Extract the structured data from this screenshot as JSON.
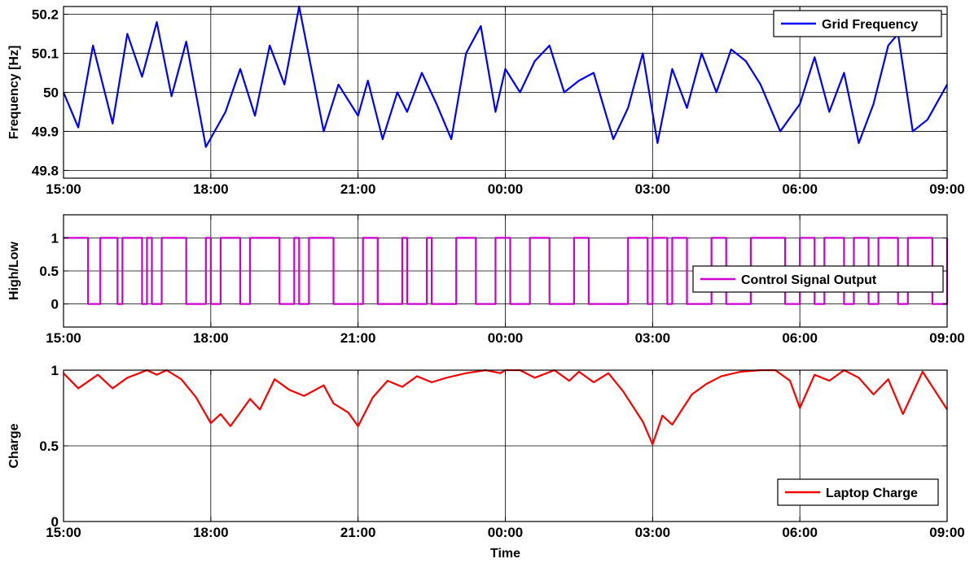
{
  "chart_data": [
    {
      "type": "line",
      "id": "frequency",
      "ylabel": "Frequency [Hz]",
      "xlabel": "",
      "xlim": [
        0,
        18
      ],
      "ylim": [
        49.78,
        50.22
      ],
      "xticks": [
        0,
        3,
        6,
        9,
        12,
        15,
        18
      ],
      "xtick_labels": [
        "15:00",
        "18:00",
        "21:00",
        "00:00",
        "03:00",
        "06:00",
        "09:00"
      ],
      "yticks": [
        49.8,
        49.9,
        50,
        50.1,
        50.2
      ],
      "ytick_labels": [
        "49.8",
        "49.9",
        "50",
        "50.1",
        "50.2"
      ],
      "grid": true,
      "legend_position": "top-right",
      "series": [
        {
          "name": "Grid Frequency",
          "color": "#0000ff",
          "step": false,
          "x": [
            0,
            0.3,
            0.6,
            1.0,
            1.3,
            1.6,
            1.9,
            2.2,
            2.5,
            2.9,
            3.3,
            3.6,
            3.9,
            4.2,
            4.5,
            4.8,
            5.3,
            5.6,
            6.0,
            6.2,
            6.5,
            6.8,
            7.0,
            7.3,
            7.6,
            7.9,
            8.2,
            8.5,
            8.8,
            9.0,
            9.3,
            9.6,
            9.9,
            10.2,
            10.5,
            10.8,
            11.2,
            11.5,
            11.8,
            12.1,
            12.4,
            12.7,
            13.0,
            13.3,
            13.6,
            13.9,
            14.2,
            14.6,
            15.0,
            15.3,
            15.6,
            15.9,
            16.2,
            16.5,
            16.8,
            17.0,
            17.3,
            17.6,
            18.0
          ],
          "y": [
            50.0,
            49.91,
            50.12,
            49.92,
            50.15,
            50.04,
            50.18,
            49.99,
            50.13,
            49.86,
            49.95,
            50.06,
            49.94,
            50.12,
            50.02,
            50.22,
            49.9,
            50.02,
            49.94,
            50.03,
            49.88,
            50.0,
            49.95,
            50.05,
            49.97,
            49.88,
            50.1,
            50.17,
            49.95,
            50.06,
            50.0,
            50.08,
            50.12,
            50.0,
            50.03,
            50.05,
            49.88,
            49.96,
            50.1,
            49.87,
            50.06,
            49.96,
            50.1,
            50.0,
            50.11,
            50.08,
            50.02,
            49.9,
            49.97,
            50.09,
            49.95,
            50.05,
            49.87,
            49.97,
            50.12,
            50.15,
            49.9,
            49.93,
            50.02
          ]
        }
      ]
    },
    {
      "type": "line",
      "id": "control",
      "ylabel": "High/Low",
      "xlabel": "",
      "xlim": [
        0,
        18
      ],
      "ylim": [
        -0.35,
        1.35
      ],
      "xticks": [
        0,
        3,
        6,
        9,
        12,
        15,
        18
      ],
      "xtick_labels": [
        "15:00",
        "18:00",
        "21:00",
        "00:00",
        "03:00",
        "06:00",
        "09:00"
      ],
      "yticks": [
        0,
        0.5,
        1
      ],
      "ytick_labels": [
        "0",
        "0.5",
        "1"
      ],
      "grid": true,
      "legend_position": "center-right",
      "series": [
        {
          "name": "Control Signal Output",
          "color": "#cc00cc",
          "step": true,
          "x": [
            0,
            0.5,
            0.75,
            1.1,
            1.2,
            1.6,
            1.7,
            1.8,
            2.0,
            2.5,
            2.9,
            3.0,
            3.2,
            3.6,
            3.8,
            4.4,
            4.7,
            4.8,
            5.0,
            5.5,
            6.1,
            6.4,
            6.9,
            7.0,
            7.4,
            7.5,
            8.0,
            8.4,
            8.8,
            9.1,
            9.5,
            9.9,
            10.4,
            10.7,
            11.5,
            11.9,
            12.0,
            12.3,
            12.4,
            12.7,
            13.2,
            13.5,
            14.0,
            14.7,
            15.0,
            15.3,
            15.5,
            15.9,
            16.1,
            16.4,
            16.6,
            17.0,
            17.2,
            17.7,
            18.0
          ],
          "y": [
            1,
            0,
            1,
            0,
            1,
            0,
            1,
            0,
            1,
            0,
            1,
            0,
            1,
            0,
            1,
            0,
            1,
            0,
            1,
            0,
            1,
            0,
            1,
            0,
            1,
            0,
            1,
            0,
            1,
            0,
            1,
            0,
            1,
            0,
            1,
            0,
            1,
            0,
            1,
            0,
            1,
            0,
            1,
            0,
            1,
            0,
            1,
            0,
            1,
            0,
            1,
            0,
            1,
            0,
            1
          ]
        }
      ]
    },
    {
      "type": "line",
      "id": "charge",
      "ylabel": "Charge",
      "xlabel": "Time",
      "xlim": [
        0,
        18
      ],
      "ylim": [
        0,
        1
      ],
      "xticks": [
        0,
        3,
        6,
        9,
        12,
        15,
        18
      ],
      "xtick_labels": [
        "15:00",
        "18:00",
        "21:00",
        "00:00",
        "03:00",
        "06:00",
        "09:00"
      ],
      "yticks": [
        0,
        0.5,
        1
      ],
      "ytick_labels": [
        "0",
        "0.5",
        "1"
      ],
      "grid": true,
      "legend_position": "bottom-right",
      "series": [
        {
          "name": "Laptop Charge",
          "color": "#ff0000",
          "step": false,
          "x": [
            0,
            0.3,
            0.7,
            1.0,
            1.3,
            1.7,
            1.9,
            2.1,
            2.4,
            2.7,
            3.0,
            3.2,
            3.4,
            3.8,
            4.0,
            4.3,
            4.6,
            4.9,
            5.3,
            5.5,
            5.8,
            6.0,
            6.3,
            6.6,
            6.9,
            7.2,
            7.5,
            7.8,
            8.2,
            8.6,
            8.9,
            9.0,
            9.3,
            9.6,
            10.0,
            10.3,
            10.5,
            10.8,
            11.1,
            11.4,
            11.8,
            12.0,
            12.2,
            12.4,
            12.8,
            13.1,
            13.4,
            13.8,
            14.2,
            14.5,
            14.8,
            15.0,
            15.3,
            15.6,
            15.9,
            16.2,
            16.5,
            16.8,
            17.1,
            17.5,
            18.0
          ],
          "y": [
            0.98,
            0.88,
            0.97,
            0.88,
            0.95,
            1.0,
            0.97,
            1.0,
            0.94,
            0.82,
            0.65,
            0.71,
            0.63,
            0.81,
            0.74,
            0.94,
            0.87,
            0.83,
            0.9,
            0.78,
            0.72,
            0.63,
            0.82,
            0.93,
            0.89,
            0.96,
            0.92,
            0.95,
            0.98,
            1.0,
            0.98,
            1.0,
            1.0,
            0.95,
            1.0,
            0.93,
            0.99,
            0.92,
            0.98,
            0.86,
            0.66,
            0.51,
            0.7,
            0.64,
            0.84,
            0.91,
            0.96,
            0.99,
            1.0,
            1.0,
            0.93,
            0.75,
            0.97,
            0.93,
            1.0,
            0.95,
            0.84,
            0.94,
            0.71,
            0.99,
            0.74
          ]
        }
      ]
    }
  ]
}
